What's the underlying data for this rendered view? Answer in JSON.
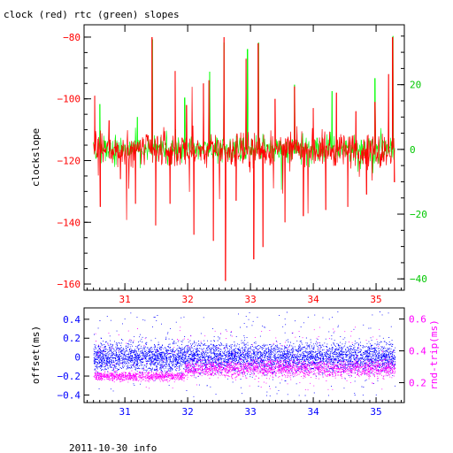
{
  "title": "clock (red) rtc (green) slopes",
  "footer": "2011-10-30 info",
  "colors": {
    "clock": "#ff0000",
    "rtc": "#00ff00",
    "offset": "#0000ff",
    "rndtrip": "#ff00ff",
    "axis": "#000000"
  },
  "chart_data": [
    {
      "type": "line",
      "title": "clock (red) rtc (green) slopes",
      "xlabel": "",
      "ylabel": "clockslope",
      "y2label": "",
      "xlim": [
        30.35,
        35.45
      ],
      "ylim": [
        -162,
        -76
      ],
      "y2lim": [
        -43.5,
        38.5
      ],
      "xticks": [
        31,
        32,
        33,
        34,
        35
      ],
      "yticks": [
        -80,
        -100,
        -120,
        -140,
        -160
      ],
      "y2ticks": [
        20,
        0,
        -20,
        -40
      ],
      "series": [
        {
          "name": "clock",
          "axis": "left",
          "x_start": 30.5,
          "x_end": 35.3,
          "baseline": -116.5,
          "spikes": [
            {
              "x": 30.52,
              "y": -99
            },
            {
              "x": 30.61,
              "y": -135
            },
            {
              "x": 30.75,
              "y": -107
            },
            {
              "x": 30.93,
              "y": -126
            },
            {
              "x": 31.17,
              "y": -134
            },
            {
              "x": 31.43,
              "y": -80
            },
            {
              "x": 31.49,
              "y": -141
            },
            {
              "x": 31.72,
              "y": -134
            },
            {
              "x": 31.8,
              "y": -91
            },
            {
              "x": 31.98,
              "y": -102
            },
            {
              "x": 32.1,
              "y": -144
            },
            {
              "x": 32.25,
              "y": -95
            },
            {
              "x": 32.34,
              "y": -94
            },
            {
              "x": 32.41,
              "y": -146
            },
            {
              "x": 32.58,
              "y": -80
            },
            {
              "x": 32.6,
              "y": -159
            },
            {
              "x": 32.77,
              "y": -133
            },
            {
              "x": 32.93,
              "y": -87
            },
            {
              "x": 33.05,
              "y": -152
            },
            {
              "x": 33.12,
              "y": -82
            },
            {
              "x": 33.2,
              "y": -148
            },
            {
              "x": 33.39,
              "y": -100
            },
            {
              "x": 33.55,
              "y": -140
            },
            {
              "x": 33.7,
              "y": -96
            },
            {
              "x": 33.84,
              "y": -138
            },
            {
              "x": 34.0,
              "y": -103
            },
            {
              "x": 34.2,
              "y": -136
            },
            {
              "x": 34.37,
              "y": -98
            },
            {
              "x": 34.55,
              "y": -135
            },
            {
              "x": 34.68,
              "y": -104
            },
            {
              "x": 34.85,
              "y": -131
            },
            {
              "x": 34.98,
              "y": -101
            },
            {
              "x": 35.2,
              "y": -92
            },
            {
              "x": 35.26,
              "y": -80
            },
            {
              "x": 35.29,
              "y": -127
            }
          ]
        },
        {
          "name": "rtc",
          "axis": "right",
          "x_start": 30.5,
          "x_end": 35.3,
          "baseline": 0,
          "spikes": [
            {
              "x": 30.6,
              "y": 14
            },
            {
              "x": 31.2,
              "y": 10
            },
            {
              "x": 31.44,
              "y": 34
            },
            {
              "x": 31.95,
              "y": 16
            },
            {
              "x": 32.35,
              "y": 24
            },
            {
              "x": 32.58,
              "y": 33
            },
            {
              "x": 32.95,
              "y": 31
            },
            {
              "x": 33.13,
              "y": 33
            },
            {
              "x": 33.7,
              "y": 20
            },
            {
              "x": 34.3,
              "y": 18
            },
            {
              "x": 34.98,
              "y": 22
            },
            {
              "x": 35.27,
              "y": 35
            }
          ]
        }
      ]
    },
    {
      "type": "scatter",
      "xlabel": "",
      "ylabel": "offset(ms)",
      "y2label": "rnd-trip(ms)",
      "xlim": [
        30.35,
        35.45
      ],
      "ylim": [
        -0.48,
        0.52
      ],
      "y2lim": [
        0.075,
        0.67
      ],
      "xticks": [
        31,
        32,
        33,
        34,
        35
      ],
      "yticks": [
        0.4,
        0.2,
        0,
        -0.2,
        -0.4
      ],
      "y2ticks": [
        0.6,
        0.4,
        0.2
      ],
      "series": [
        {
          "name": "offset",
          "axis": "left",
          "x_start": 30.5,
          "x_end": 35.3,
          "center": 0.0,
          "band": [
            -0.18,
            0.18
          ],
          "outlier_range": [
            -0.42,
            0.48
          ]
        },
        {
          "name": "rnd-trip",
          "axis": "right",
          "segments": [
            {
              "x": [
                30.5,
                31.95
              ],
              "center": 0.24,
              "band": [
                0.2,
                0.28
              ]
            },
            {
              "x": [
                31.95,
                35.3
              ],
              "center": 0.29,
              "band": [
                0.2,
                0.36
              ]
            }
          ],
          "outlier_range": [
            0.15,
            0.55
          ]
        }
      ]
    }
  ]
}
